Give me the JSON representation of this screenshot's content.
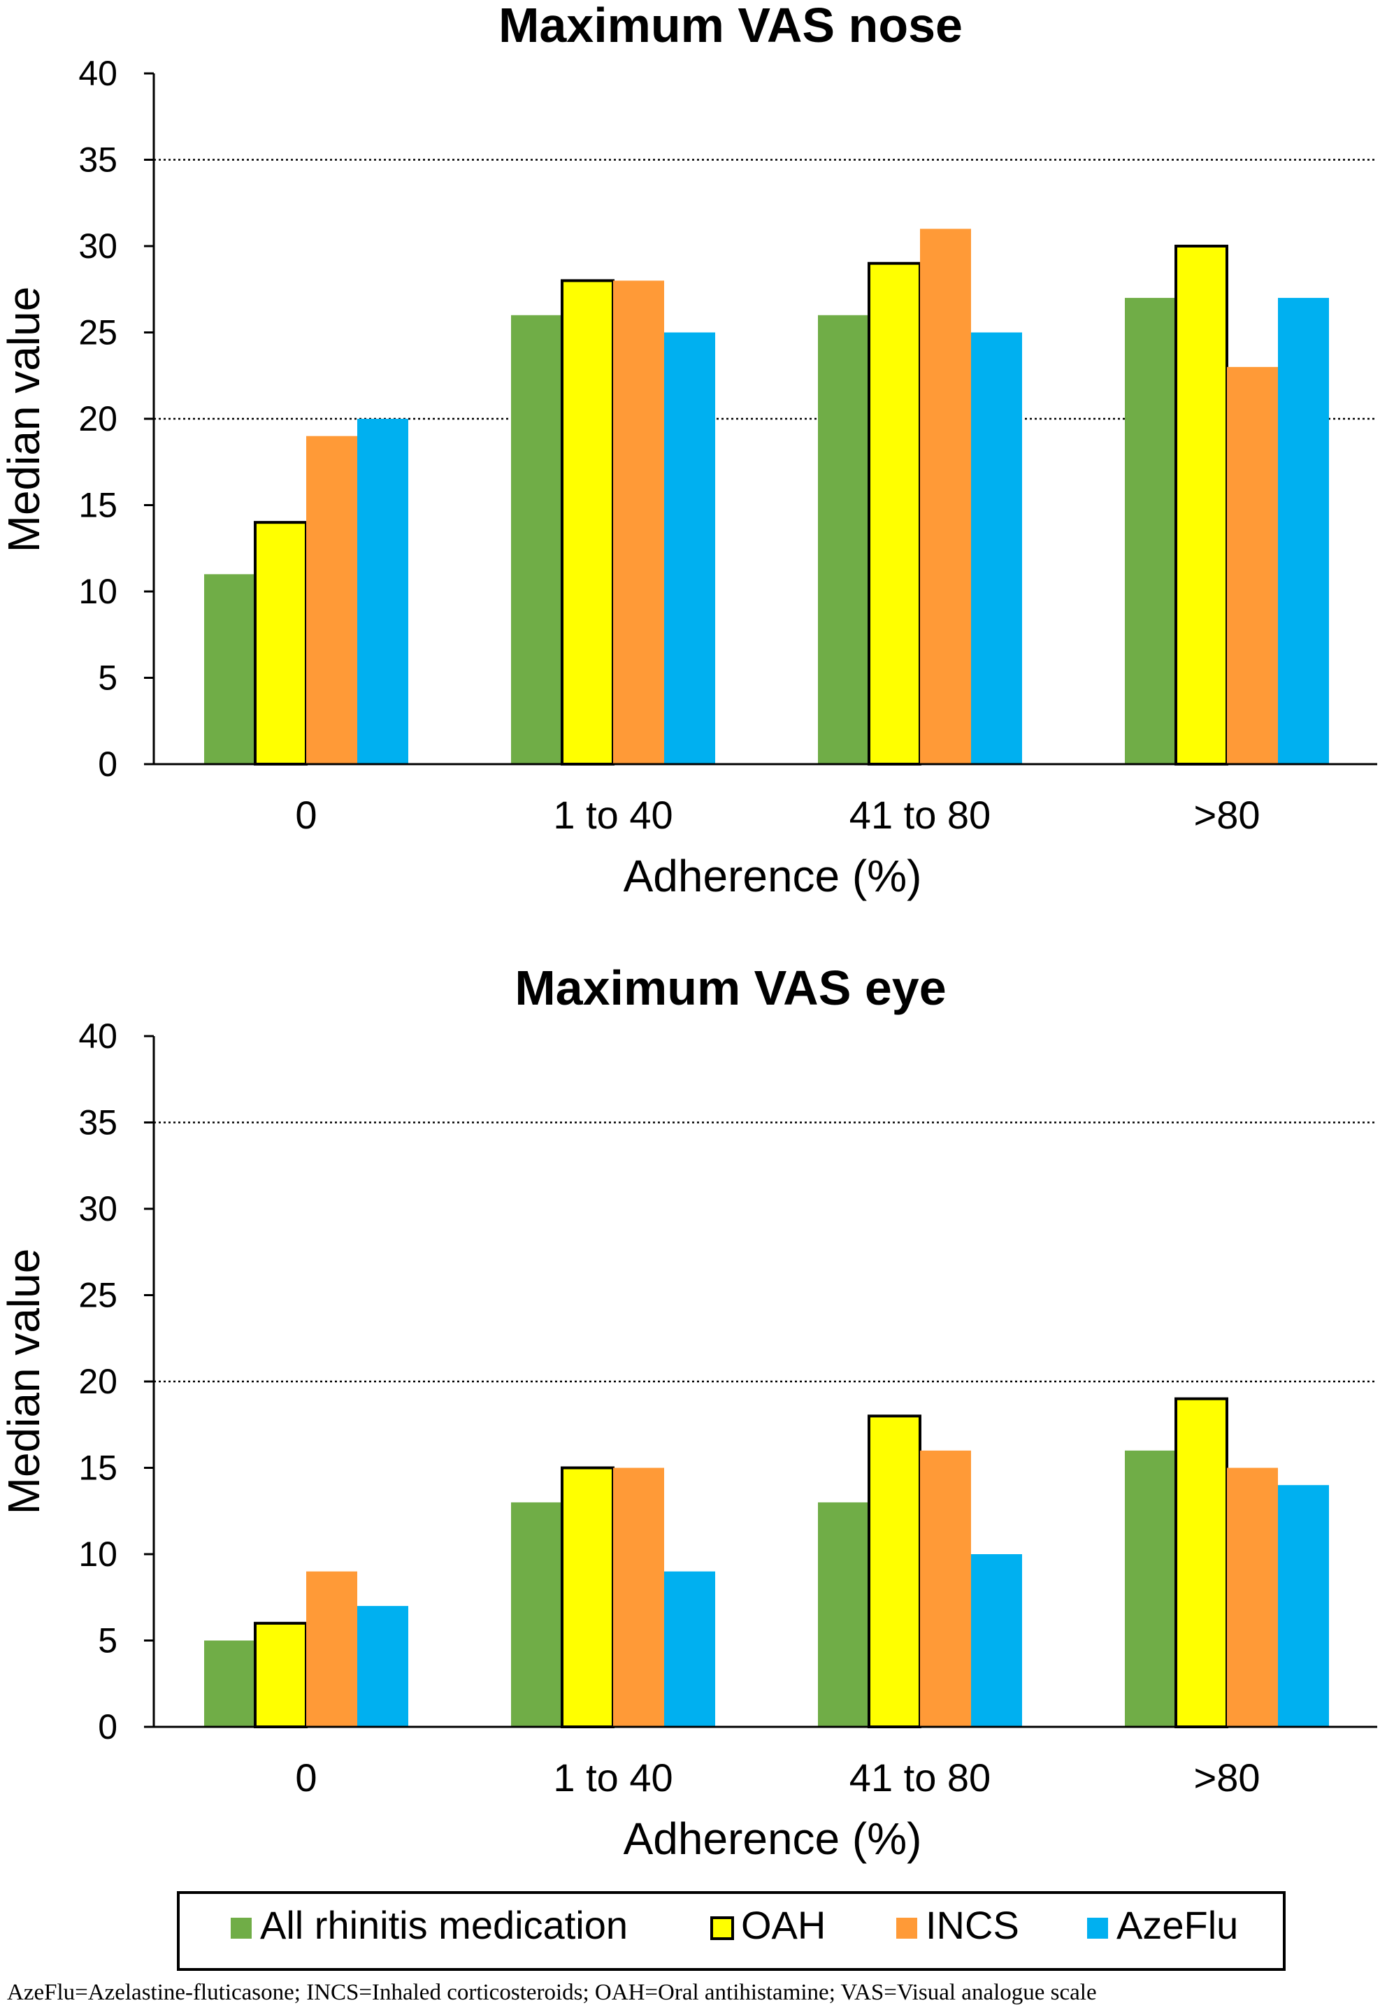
{
  "chart_data": [
    {
      "type": "bar",
      "title": "Maximum VAS nose",
      "xlabel": "Adherence (%)",
      "ylabel": "Median value",
      "ylim": [
        0,
        40
      ],
      "yticks": [
        0,
        5,
        10,
        15,
        20,
        25,
        30,
        35,
        40
      ],
      "reference_lines": [
        20,
        35
      ],
      "grid": false,
      "categories": [
        "0",
        "1 to 40",
        "41 to 80",
        ">80"
      ],
      "series": [
        {
          "name": "All rhinitis medication",
          "color": "#70ad47",
          "values": [
            11,
            26,
            26,
            27
          ]
        },
        {
          "name": "OAH",
          "color": "#ffff00",
          "values": [
            14,
            28,
            29,
            30
          ]
        },
        {
          "name": "INCS",
          "color": "#ff9a37",
          "values": [
            19,
            28,
            31,
            23
          ]
        },
        {
          "name": "AzeFlu",
          "color": "#00b0f0",
          "values": [
            20,
            25,
            25,
            27
          ]
        }
      ]
    },
    {
      "type": "bar",
      "title": "Maximum VAS eye",
      "xlabel": "Adherence (%)",
      "ylabel": "Median value",
      "ylim": [
        0,
        40
      ],
      "yticks": [
        0,
        5,
        10,
        15,
        20,
        25,
        30,
        35,
        40
      ],
      "reference_lines": [
        20,
        35
      ],
      "grid": false,
      "categories": [
        "0",
        "1 to 40",
        "41 to 80",
        ">80"
      ],
      "series": [
        {
          "name": "All rhinitis medication",
          "color": "#70ad47",
          "values": [
            5,
            13,
            13,
            16
          ]
        },
        {
          "name": "OAH",
          "color": "#ffff00",
          "values": [
            6,
            15,
            18,
            19
          ]
        },
        {
          "name": "INCS",
          "color": "#ff9a37",
          "values": [
            9,
            15,
            16,
            15
          ]
        },
        {
          "name": "AzeFlu",
          "color": "#00b0f0",
          "values": [
            7,
            9,
            10,
            14
          ]
        }
      ]
    }
  ],
  "legend": {
    "placement": "bottom",
    "items": [
      "All rhinitis medication",
      "OAH",
      "INCS",
      "AzeFlu"
    ]
  },
  "footnote": "AzeFlu=Azelastine-fluticasone; INCS=Inhaled corticosteroids; OAH=Oral antihistamine; VAS=Visual analogue scale"
}
